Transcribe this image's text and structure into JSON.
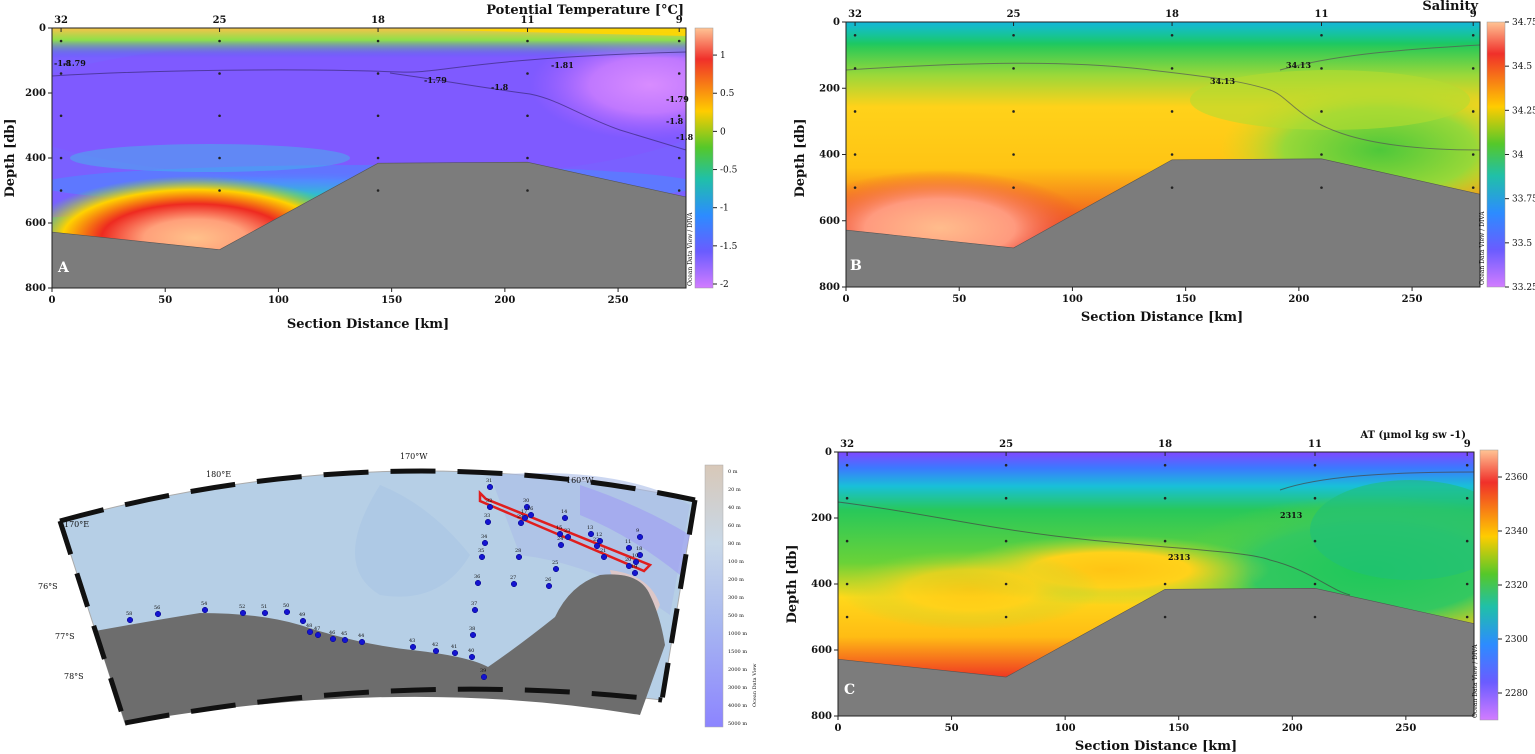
{
  "chart_data": [
    {
      "id": "A",
      "type": "heatmap",
      "panel_label": "A",
      "title": "Potential Temperature [°C]",
      "xlabel": "Section Distance [km]",
      "ylabel": "Depth [db]",
      "xlim": [
        0,
        280
      ],
      "ylim": [
        800,
        0
      ],
      "x_ticks": [
        0,
        50,
        100,
        150,
        200,
        250
      ],
      "y_ticks": [
        0,
        200,
        400,
        600,
        800
      ],
      "stations": [
        {
          "name": "32",
          "km": 4
        },
        {
          "name": "25",
          "km": 74
        },
        {
          "name": "18",
          "km": 144
        },
        {
          "name": "11",
          "km": 210
        },
        {
          "name": "9",
          "km": 277
        }
      ],
      "bathymetry": [
        [
          0,
          628
        ],
        [
          74,
          682
        ],
        [
          144,
          416
        ],
        [
          210,
          413
        ],
        [
          280,
          520
        ]
      ],
      "colorbar": {
        "min": -2,
        "max": 1.25,
        "ticks": [
          "1",
          "0.5",
          "0",
          "-0.5",
          "-1",
          "-1.5",
          "-2"
        ],
        "tick_values": [
          1,
          0.5,
          0,
          -0.5,
          -1,
          -1.5,
          -2
        ],
        "source": "Ocean Data View / DIVA"
      },
      "contour_labels": [
        "-1.8",
        "-1.79",
        "-1.79",
        "-1.81",
        "-1.8",
        "-1.79",
        "-1.8",
        "-1.8"
      ]
    },
    {
      "id": "B",
      "type": "heatmap",
      "panel_label": "B",
      "title": "Salinity",
      "xlabel": "Section Distance [km]",
      "ylabel": "Depth [db]",
      "xlim": [
        0,
        280
      ],
      "ylim": [
        800,
        0
      ],
      "x_ticks": [
        0,
        50,
        100,
        150,
        200,
        250
      ],
      "y_ticks": [
        0,
        200,
        400,
        600,
        800
      ],
      "stations": [
        {
          "name": "32",
          "km": 4
        },
        {
          "name": "25",
          "km": 74
        },
        {
          "name": "18",
          "km": 144
        },
        {
          "name": "11",
          "km": 210
        },
        {
          "name": "9",
          "km": 277
        }
      ],
      "bathymetry": [
        [
          0,
          628
        ],
        [
          74,
          682
        ],
        [
          144,
          416
        ],
        [
          210,
          413
        ],
        [
          280,
          520
        ]
      ],
      "colorbar": {
        "min": 33.25,
        "max": 34.75,
        "ticks": [
          "34.75",
          "34.5",
          "34.25",
          "34",
          "33.75",
          "33.5",
          "33.25"
        ],
        "tick_values": [
          34.75,
          34.5,
          34.25,
          34,
          33.75,
          33.5,
          33.25
        ],
        "source": "Ocean Data View / DIVA"
      },
      "contour_labels": [
        "34.13",
        "34.13"
      ]
    },
    {
      "id": "C",
      "type": "heatmap",
      "panel_label": "C",
      "title": "AT (µmol kg sw -1)",
      "xlabel": "Section Distance [km]",
      "ylabel": "Depth [db]",
      "xlim": [
        0,
        280
      ],
      "ylim": [
        800,
        0
      ],
      "x_ticks": [
        0,
        50,
        100,
        150,
        200,
        250
      ],
      "y_ticks": [
        0,
        200,
        400,
        600,
        800
      ],
      "stations": [
        {
          "name": "32",
          "km": 4
        },
        {
          "name": "25",
          "km": 74
        },
        {
          "name": "18",
          "km": 144
        },
        {
          "name": "11",
          "km": 210
        },
        {
          "name": "9",
          "km": 277
        }
      ],
      "bathymetry": [
        [
          0,
          628
        ],
        [
          74,
          682
        ],
        [
          144,
          416
        ],
        [
          210,
          413
        ],
        [
          280,
          520
        ]
      ],
      "colorbar": {
        "min": 2270,
        "max": 2370,
        "ticks": [
          "2360",
          "2340",
          "2320",
          "2300",
          "2280"
        ],
        "tick_values": [
          2360,
          2340,
          2320,
          2300,
          2280
        ],
        "source": "Ocean Data View / DIVA"
      },
      "contour_labels": [
        "2313",
        "2313"
      ]
    }
  ],
  "map": {
    "lon_labels": [
      "170°E",
      "180°E",
      "170°W",
      "160°W"
    ],
    "lat_labels": [
      "76°S",
      "77°S",
      "78°S"
    ],
    "depth_legend": [
      "0 m",
      "20 m",
      "40 m",
      "60 m",
      "80 m",
      "100 m",
      "200 m",
      "300 m",
      "500 m",
      "1000 m",
      "1500 m",
      "2000 m",
      "3000 m",
      "4000 m",
      "5000 m"
    ],
    "credit": "Ocean Data View",
    "station_labels": [
      "58",
      "56",
      "54",
      "52",
      "51",
      "50",
      "49",
      "48",
      "47",
      "46",
      "45",
      "44",
      "43",
      "42",
      "41",
      "40",
      "39",
      "38",
      "37",
      "36",
      "35",
      "34",
      "33",
      "32",
      "31",
      "30",
      "29",
      "28",
      "27",
      "26",
      "25",
      "24",
      "23",
      "22",
      "21",
      "20",
      "19",
      "18",
      "17",
      "16",
      "15",
      "14",
      "13",
      "12",
      "11",
      "10",
      "9"
    ]
  }
}
